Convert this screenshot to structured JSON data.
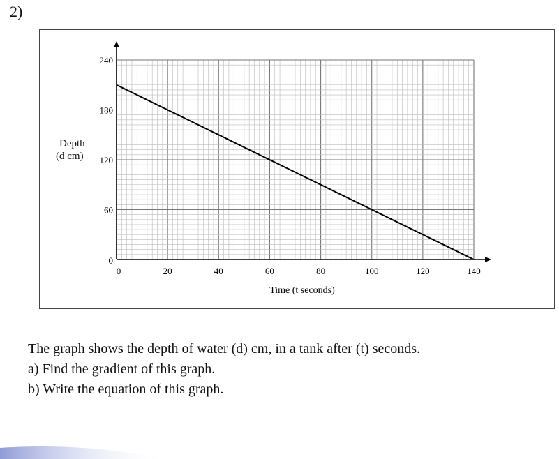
{
  "question_number": "2)",
  "chart_data": {
    "type": "line",
    "xlabel": "Time (t seconds)",
    "ylabel_line1": "Depth",
    "ylabel_line2": "(d cm)",
    "x_ticks": [
      0,
      20,
      40,
      60,
      80,
      100,
      120,
      140
    ],
    "y_ticks": [
      0,
      60,
      120,
      180,
      240
    ],
    "x_tick_labels": [
      "0",
      "20",
      "40",
      "60",
      "80",
      "100",
      "120",
      "140"
    ],
    "y_tick_labels": [
      "0",
      "60",
      "120",
      "180",
      "240"
    ],
    "xlim": [
      0,
      140
    ],
    "ylim": [
      0,
      240
    ],
    "grid": true,
    "series": [
      {
        "x": [
          0,
          140
        ],
        "values": [
          210,
          0
        ]
      }
    ]
  },
  "question_text": {
    "intro": "The graph shows the depth of water (d) cm, in a tank after (t) seconds.",
    "part_a": "a)  Find the gradient of this graph.",
    "part_b": "b)  Write the equation of this graph."
  }
}
